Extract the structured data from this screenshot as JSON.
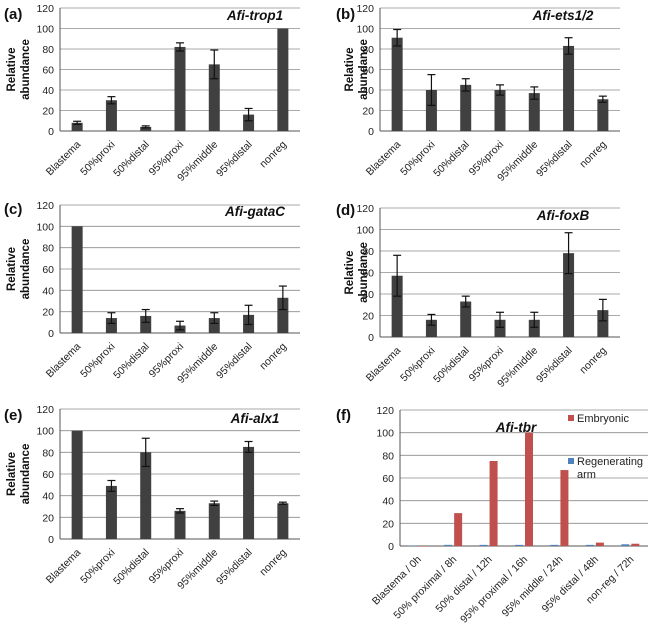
{
  "chart_data": [
    {
      "type": "bar",
      "panel_label": "(a)",
      "title": "Afi-trop1",
      "ylabel": "Relative abundance",
      "ylim": [
        0,
        120
      ],
      "yticks": [
        0,
        20,
        40,
        60,
        80,
        100,
        120
      ],
      "categories": [
        "Blastema",
        "50%proxi",
        "50%distal",
        "95%proxi",
        "95%middle",
        "95%distal",
        "nonreg"
      ],
      "values": [
        8,
        30,
        4,
        82,
        65,
        16,
        100
      ],
      "errors": [
        1.5,
        3.5,
        1,
        4,
        14,
        6,
        0
      ],
      "grid": true,
      "colors": {
        "bar": "#404040"
      }
    },
    {
      "type": "bar",
      "panel_label": "(b)",
      "title": "Afi-ets1/2",
      "ylabel": "Relative abundance",
      "ylim": [
        0,
        120
      ],
      "yticks": [
        0,
        20,
        40,
        60,
        80,
        100,
        120
      ],
      "categories": [
        "Blastema",
        "50%proxi",
        "50%distal",
        "95%proxi",
        "95%middle",
        "95%distal",
        "nonreg"
      ],
      "values": [
        91,
        40,
        45,
        40,
        37,
        83,
        31
      ],
      "errors": [
        8,
        15,
        6,
        5,
        6,
        8,
        3
      ],
      "grid": true,
      "colors": {
        "bar": "#404040"
      }
    },
    {
      "type": "bar",
      "panel_label": "(c)",
      "title": "Afi-gataC",
      "ylabel": "Relative abundance",
      "ylim": [
        0,
        120
      ],
      "yticks": [
        0,
        20,
        40,
        60,
        80,
        100,
        120
      ],
      "categories": [
        "Blastema",
        "50%proxi",
        "50%distal",
        "95%proxi",
        "95%middle",
        "95%distal",
        "nonreg"
      ],
      "values": [
        100,
        14,
        16,
        7,
        14,
        17,
        33
      ],
      "errors": [
        0,
        5,
        6,
        4,
        5,
        9,
        11
      ],
      "grid": true,
      "colors": {
        "bar": "#404040"
      }
    },
    {
      "type": "bar",
      "panel_label": "(d)",
      "title": "Afi-foxB",
      "ylabel": "Relative abundance",
      "ylim": [
        0,
        120
      ],
      "yticks": [
        0,
        20,
        40,
        60,
        80,
        100,
        120
      ],
      "categories": [
        "Blastema",
        "50%proxi",
        "50%distal",
        "95%proxi",
        "95%middle",
        "95%distal",
        "nonreg"
      ],
      "values": [
        57,
        16,
        33,
        16,
        16,
        78,
        25
      ],
      "errors": [
        19,
        5,
        5,
        7,
        7,
        19,
        10
      ],
      "grid": true,
      "colors": {
        "bar": "#404040"
      }
    },
    {
      "type": "bar",
      "panel_label": "(e)",
      "title": "Afi-alx1",
      "ylabel": "Relative abundance",
      "ylim": [
        0,
        120
      ],
      "yticks": [
        0,
        20,
        40,
        60,
        80,
        100,
        120
      ],
      "categories": [
        "Blastema",
        "50%proxi",
        "50%distal",
        "95%proxi",
        "95%middle",
        "95%distal",
        "nonreg"
      ],
      "values": [
        100,
        49,
        80,
        26,
        33,
        85,
        33
      ],
      "errors": [
        0,
        5,
        13,
        2,
        2,
        5,
        1
      ],
      "grid": true,
      "colors": {
        "bar": "#404040"
      }
    },
    {
      "type": "bar",
      "panel_label": "(f)",
      "title": "Afi-tbr",
      "ylabel": "",
      "ylim": [
        0,
        120
      ],
      "yticks": [
        0,
        20,
        40,
        60,
        80,
        100,
        120
      ],
      "categories": [
        "Blastema / 0h",
        "50% proximal / 8h",
        "50% distal / 12h",
        "95% proximal / 16h",
        "95% middle / 24h",
        "95% distal / 48h",
        "non-reg / 72h"
      ],
      "series": [
        {
          "name": "Regenerating arm",
          "values": [
            0.5,
            1,
            1,
            1,
            1,
            1,
            1.5
          ],
          "color": "#4f81bd"
        },
        {
          "name": "Embryonic",
          "values": [
            0,
            29,
            75,
            100,
            67,
            3,
            2
          ],
          "color": "#c0504d"
        }
      ],
      "legend_placement": "top-right",
      "grid": true
    }
  ]
}
